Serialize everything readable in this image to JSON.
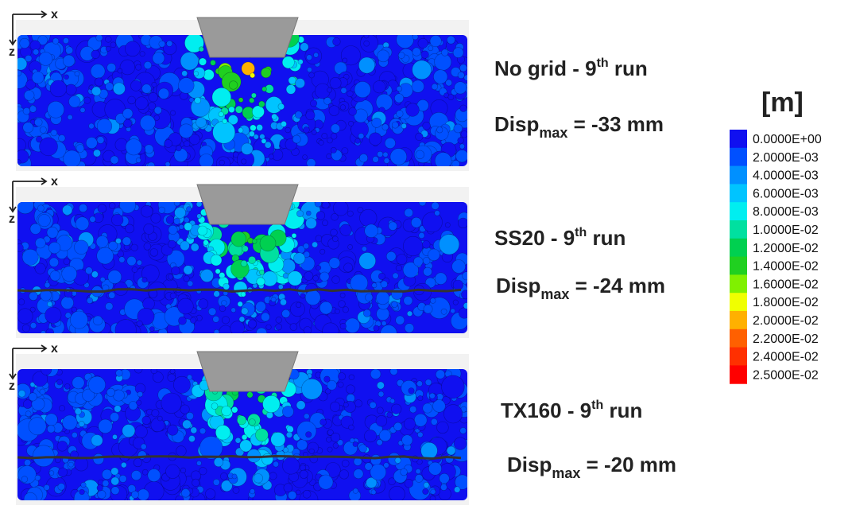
{
  "panels": [
    {
      "title": {
        "text": "No grid - 9",
        "sup": "th",
        "rest": " run"
      },
      "disp": {
        "label": "Disp",
        "sub": "max",
        "rest": " = -33 mm"
      },
      "axes": {
        "x": "x",
        "z": "z"
      }
    },
    {
      "title": {
        "text": "SS20 - 9",
        "sup": "th",
        "rest": " run"
      },
      "disp": {
        "label": "Disp",
        "sub": "max",
        "rest": " = -24 mm"
      },
      "axes": {
        "x": "x",
        "z": "z"
      }
    },
    {
      "title": {
        "text": "TX160 - 9",
        "sup": "th",
        "rest": " run"
      },
      "disp": {
        "label": "Disp",
        "sub": "max",
        "rest": " = -20 mm"
      },
      "axes": {
        "x": "x",
        "z": "z"
      }
    }
  ],
  "legend": {
    "unit": "[m]",
    "items": [
      {
        "label": "0.0000E+00",
        "color": "#1010f0"
      },
      {
        "label": "2.0000E-03",
        "color": "#0050ff"
      },
      {
        "label": "4.0000E-03",
        "color": "#0090ff"
      },
      {
        "label": "6.0000E-03",
        "color": "#00c4ff"
      },
      {
        "label": "8.0000E-03",
        "color": "#00eef0"
      },
      {
        "label": "1.0000E-02",
        "color": "#00e0a0"
      },
      {
        "label": "1.2000E-02",
        "color": "#00d050"
      },
      {
        "label": "1.4000E-02",
        "color": "#20d020"
      },
      {
        "label": "1.6000E-02",
        "color": "#80f000"
      },
      {
        "label": "1.8000E-02",
        "color": "#f0ff00"
      },
      {
        "label": "2.0000E-02",
        "color": "#ffb000"
      },
      {
        "label": "2.2000E-02",
        "color": "#ff6000"
      },
      {
        "label": "2.4000E-02",
        "color": "#ff3000"
      },
      {
        "label": "2.5000E-02",
        "color": "#ff0000"
      }
    ]
  }
}
